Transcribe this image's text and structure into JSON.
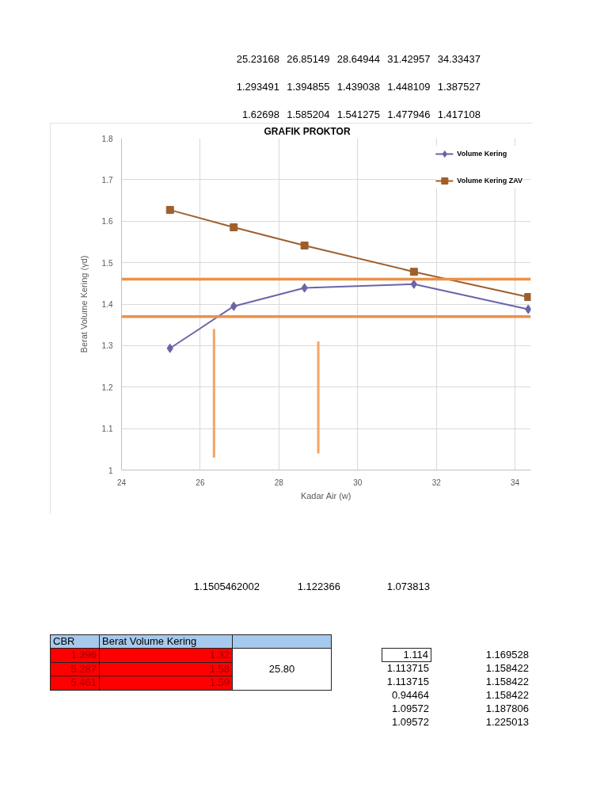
{
  "chart_data": {
    "type": "line",
    "title": "GRAFIK PROKTOR",
    "xlabel": "Kadar Air (w)",
    "ylabel": "Berat Volume Kering (γd)",
    "x": [
      25.23168,
      26.85149,
      28.64944,
      31.42957,
      34.33437
    ],
    "series": [
      {
        "name": "Volume Kering",
        "color": "#6b64a8",
        "marker": "diamond",
        "values": [
          1.293491,
          1.394855,
          1.439038,
          1.448109,
          1.387527
        ]
      },
      {
        "name": "Volume Kering ZAV",
        "color": "#9e5f2d",
        "marker": "square",
        "values": [
          1.62698,
          1.585204,
          1.541275,
          1.477946,
          1.417108
        ]
      },
      {
        "type": "bar",
        "color": "#f3a566",
        "x": [
          26.35,
          29.0
        ],
        "base": [
          1.03,
          1.04
        ],
        "values": [
          0.31,
          0.27
        ]
      }
    ],
    "xlim": [
      24,
      34.4
    ],
    "ylim": [
      1,
      1.8
    ],
    "xticks": [
      24,
      26,
      28,
      30,
      32,
      34
    ],
    "yticks": [
      1,
      1.1,
      1.2,
      1.3,
      1.4,
      1.5,
      1.6,
      1.7,
      1.8
    ],
    "grid": true,
    "legend": "top right",
    "ref_lines": [
      {
        "axis": "y",
        "value": 1.46,
        "color": "#eb914a"
      },
      {
        "axis": "y",
        "value": 1.37,
        "color": "#eb914a"
      }
    ],
    "annotations": [
      "25.23168",
      "26.85149",
      "28.64944",
      "31.42957",
      "34.33437",
      "1.293491",
      "1.394855",
      "1.439038",
      "1.448109",
      "1.387527",
      "1.62698",
      "1.585204",
      "1.541275",
      "1.477946",
      "1.417108",
      "1.1505462002",
      "1.122366",
      "1.073813",
      "CBR",
      "Berat Volume Kering",
      "1.396",
      "1.32",
      "5.287",
      "1.58",
      "5.461",
      "1.59",
      "25.80",
      "1.114",
      "1.169528",
      "1.113715",
      "1.158422",
      "1.113715",
      "1.158422",
      "0.94464",
      "1.158422",
      "1.09572",
      "1.187806",
      "1.09572",
      "1.225013"
    ]
  }
}
